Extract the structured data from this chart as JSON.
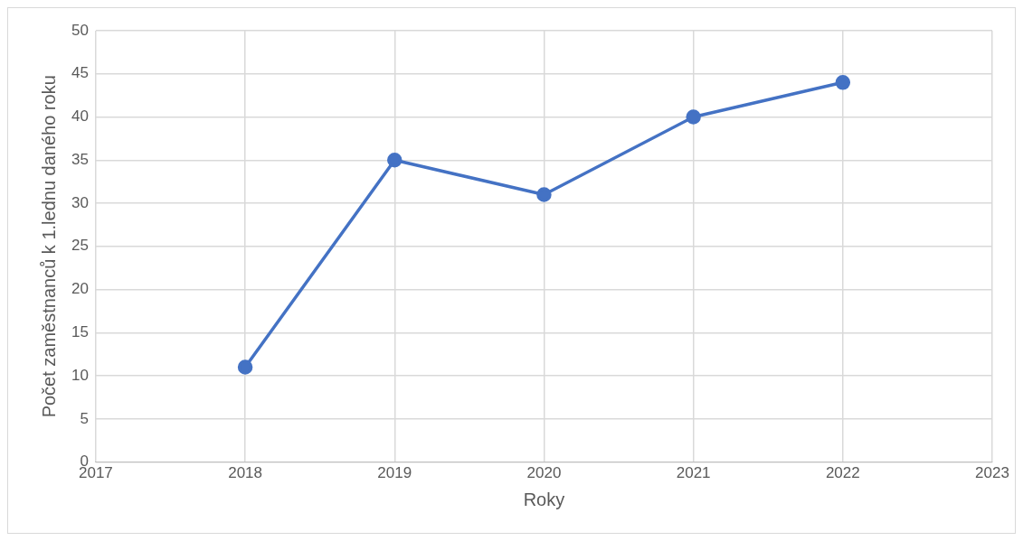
{
  "chart_data": {
    "type": "line",
    "xlabel": "Roky",
    "ylabel": "Počet zaměstnanců k 1.lednu daného roku",
    "x": [
      2018,
      2019,
      2020,
      2021,
      2022
    ],
    "series": [
      {
        "color": "#4472c4",
        "values": [
          11,
          35,
          31,
          40,
          44
        ]
      }
    ],
    "xlim": [
      2017,
      2023
    ],
    "xticks": [
      2017,
      2018,
      2019,
      2020,
      2021,
      2022,
      2023
    ],
    "ylim": [
      0,
      50
    ],
    "yticks": [
      0,
      5,
      10,
      15,
      20,
      25,
      30,
      35,
      40,
      45,
      50
    ],
    "grid": true,
    "legend": false,
    "marker": "circle",
    "line_style": "solid"
  }
}
